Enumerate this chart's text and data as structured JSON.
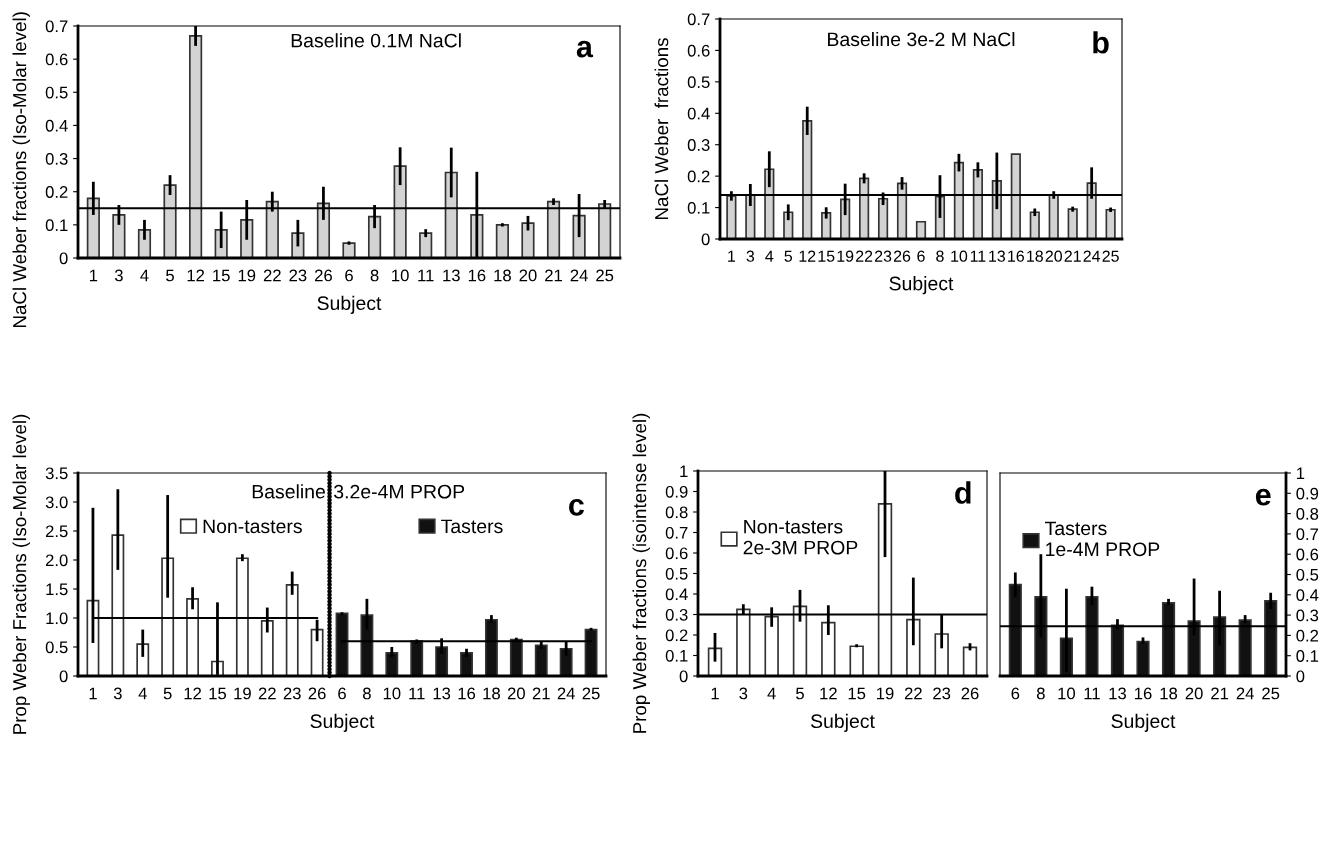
{
  "chart_data": [
    {
      "type": "bar",
      "ylabel": "NaCl Weber fractions (Iso-Molar level)",
      "xlabel": "Subject",
      "annotations": [
        "Baseline 0.1M NaCl",
        "a"
      ],
      "categories": [
        "1",
        "3",
        "4",
        "5",
        "12",
        "15",
        "19",
        "22",
        "23",
        "26",
        "6",
        "8",
        "10",
        "11",
        "13",
        "16",
        "18",
        "20",
        "21",
        "24",
        "25"
      ],
      "series": [
        {
          "color": "#d3d3d3",
          "values": [
            0.18,
            0.13,
            0.085,
            0.22,
            0.67,
            0.085,
            0.115,
            0.17,
            0.075,
            0.165,
            0.045,
            0.125,
            0.277,
            0.075,
            0.258,
            0.13,
            0.1,
            0.105,
            0.17,
            0.128,
            0.163
          ],
          "errors": [
            0.05,
            0.03,
            0.03,
            0.03,
            0.03,
            0.055,
            0.06,
            0.03,
            0.04,
            0.05,
            0.005,
            0.035,
            0.057,
            0.012,
            0.075,
            0.13,
            0.005,
            0.022,
            0.01,
            0.065,
            0.012
          ]
        }
      ],
      "ylim": [
        0,
        0.7
      ],
      "yticks": [
        0,
        0.1,
        0.2,
        0.3,
        0.4,
        0.5,
        0.6,
        0.7
      ],
      "ref_lines": [
        {
          "axis": "y",
          "value": 0.15,
          "color": "#000000"
        }
      ],
      "grid": false,
      "legend": false
    },
    {
      "type": "bar",
      "ylabel": "NaCl Weber  fractions",
      "xlabel": "Subject",
      "annotations": [
        "Baseline 3e-2 M NaCl",
        "b"
      ],
      "categories": [
        "1",
        "3",
        "4",
        "5",
        "12",
        "15",
        "19",
        "22",
        "23",
        "26",
        "6",
        "8",
        "10",
        "11",
        "13",
        "16",
        "18",
        "20",
        "21",
        "24",
        "25"
      ],
      "series": [
        {
          "color": "#d3d3d3",
          "values": [
            0.137,
            0.14,
            0.222,
            0.085,
            0.376,
            0.083,
            0.126,
            0.193,
            0.128,
            0.177,
            0.055,
            0.135,
            0.243,
            0.22,
            0.185,
            0.27,
            0.085,
            0.14,
            0.095,
            0.178,
            0.093
          ],
          "errors": [
            0.015,
            0.035,
            0.057,
            0.025,
            0.045,
            0.018,
            0.05,
            0.016,
            0.02,
            0.02,
            null,
            0.068,
            0.028,
            0.024,
            0.09,
            null,
            0.012,
            0.012,
            0.008,
            0.05,
            0.007
          ]
        }
      ],
      "ylim": [
        0,
        0.7
      ],
      "yticks": [
        0,
        0.1,
        0.2,
        0.3,
        0.4,
        0.5,
        0.6,
        0.7
      ],
      "ref_lines": [
        {
          "axis": "y",
          "value": 0.14,
          "color": "#000000"
        }
      ],
      "grid": false,
      "legend": false
    },
    {
      "type": "bar",
      "ylabel": "Prop Weber Fractions (Iso-Molar level)",
      "xlabel": "Subject",
      "annotations": [
        "Baseline",
        "3.2e-4M PROP",
        "c"
      ],
      "categories": [
        "1",
        "3",
        "4",
        "5",
        "12",
        "15",
        "19",
        "22",
        "23",
        "26",
        "6",
        "8",
        "10",
        "11",
        "13",
        "16",
        "18",
        "20",
        "21",
        "24",
        "25"
      ],
      "series": [
        {
          "name": "Non-tasters",
          "color": "#ffffff",
          "values": [
            1.3,
            2.43,
            0.55,
            2.03,
            1.33,
            0.25,
            2.03,
            0.95,
            1.57,
            0.8,
            null,
            null,
            null,
            null,
            null,
            null,
            null,
            null,
            null,
            null,
            null
          ],
          "errors": [
            [
              0.57,
              2.9
            ],
            [
              1.83,
              3.22
            ],
            [
              0.33,
              0.8
            ],
            [
              1.35,
              3.12
            ],
            [
              1.15,
              1.53
            ],
            [
              0.02,
              1.27
            ],
            [
              1.98,
              2.1
            ],
            [
              0.75,
              1.18
            ],
            [
              1.4,
              1.8
            ],
            [
              0.6,
              0.97
            ],
            null,
            null,
            null,
            null,
            null,
            null,
            null,
            null,
            null,
            null,
            null
          ]
        },
        {
          "name": "Tasters",
          "color": "#111111",
          "values": [
            null,
            null,
            null,
            null,
            null,
            null,
            null,
            null,
            null,
            null,
            1.08,
            1.05,
            0.4,
            0.6,
            0.5,
            0.4,
            0.97,
            0.63,
            0.53,
            0.47,
            0.8
          ],
          "errors": [
            null,
            null,
            null,
            null,
            null,
            null,
            null,
            null,
            null,
            null,
            [
              1.05,
              1.1
            ],
            [
              0.8,
              1.33
            ],
            [
              0.33,
              0.5
            ],
            [
              0.55,
              0.63
            ],
            [
              0.38,
              0.65
            ],
            [
              0.33,
              0.47
            ],
            [
              0.92,
              1.05
            ],
            [
              0.6,
              0.66
            ],
            [
              0.47,
              0.6
            ],
            [
              0.35,
              0.6
            ],
            [
              0.78,
              0.83
            ]
          ]
        },
        {
          "type": "line",
          "color": "#000000",
          "values": [
            1.0,
            1.0,
            1.0,
            1.0,
            1.0,
            1.0,
            1.0,
            1.0,
            1.0,
            1.0,
            null,
            null,
            null,
            null,
            null,
            null,
            null,
            null,
            null,
            null,
            null
          ]
        },
        {
          "type": "line",
          "color": "#000000",
          "values": [
            null,
            null,
            null,
            null,
            null,
            null,
            null,
            null,
            null,
            null,
            0.6,
            0.6,
            0.6,
            0.6,
            0.6,
            0.6,
            0.6,
            0.6,
            0.6,
            0.6,
            0.6
          ]
        }
      ],
      "ylim": [
        0,
        3.5
      ],
      "yticks": [
        0,
        {
          "value": 0.5,
          "label": "0.5"
        },
        {
          "value": 1,
          "label": "1.0"
        },
        {
          "value": 1.5,
          "label": "1.5"
        },
        {
          "value": 2,
          "label": "2.0"
        },
        {
          "value": 2.5,
          "label": "2.5"
        },
        {
          "value": 3,
          "label": "3.0"
        },
        {
          "value": 3.5,
          "label": "3.5"
        }
      ],
      "grid": false,
      "legend": "top"
    },
    {
      "type": "bar",
      "ylabel": "Prop Weber fractions (isointense level)",
      "xlabel": "Subject",
      "annotations": [
        "d"
      ],
      "categories": [
        "1",
        "3",
        "4",
        "5",
        "12",
        "15",
        "19",
        "22",
        "23",
        "26"
      ],
      "series": [
        {
          "name": "Non-tasters\n2e-3M PROP",
          "color": "#ffffff",
          "values": [
            0.135,
            0.325,
            0.29,
            0.34,
            0.26,
            0.145,
            0.84,
            0.275,
            0.205,
            0.14
          ],
          "errors": [
            [
              0.07,
              0.21
            ],
            [
              0.3,
              0.35
            ],
            [
              0.24,
              0.335
            ],
            [
              0.265,
              0.42
            ],
            [
              0.2,
              0.345
            ],
            [
              0.14,
              0.155
            ],
            [
              0.58,
              1.0
            ],
            [
              0.15,
              0.48
            ],
            [
              0.135,
              0.3
            ],
            [
              0.125,
              0.16
            ]
          ]
        }
      ],
      "ylim": [
        0,
        1
      ],
      "yticks": [
        0,
        0.1,
        0.2,
        0.3,
        0.4,
        0.5,
        0.6,
        0.7,
        0.8,
        0.9,
        1
      ],
      "ref_lines": [
        {
          "axis": "y",
          "value": 0.3,
          "color": "#000000"
        }
      ],
      "grid": false,
      "legend": "top left"
    },
    {
      "type": "bar",
      "xlabel": "Subject",
      "annotations": [
        "e"
      ],
      "categories": [
        "6",
        "8",
        "10",
        "11",
        "13",
        "16",
        "18",
        "20",
        "21",
        "24",
        "25"
      ],
      "series": [
        {
          "name": "Tasters\n1e-4M PROP",
          "color": "#111111",
          "axis": "y2",
          "values": [
            0.45,
            0.39,
            0.185,
            0.39,
            0.25,
            0.17,
            0.36,
            0.27,
            0.29,
            0.275,
            0.37
          ],
          "errors": [
            [
              0.39,
              0.51
            ],
            [
              0.19,
              0.6
            ],
            [
              0.02,
              0.43
            ],
            [
              0.35,
              0.44
            ],
            [
              0.23,
              0.28
            ],
            [
              0.16,
              0.19
            ],
            [
              0.35,
              0.38
            ],
            [
              0.2,
              0.48
            ],
            [
              0.15,
              0.42
            ],
            [
              0.26,
              0.3
            ],
            [
              0.33,
              0.41
            ]
          ]
        }
      ],
      "y2lim": [
        0,
        1
      ],
      "y2ticks": [
        0,
        0.1,
        0.2,
        0.3,
        0.4,
        0.5,
        0.6,
        0.7,
        0.8,
        0.9,
        1
      ],
      "ref_lines": [
        {
          "axis": "y2",
          "value": 0.245,
          "color": "#000000"
        }
      ],
      "grid": false,
      "legend": "top left"
    }
  ]
}
